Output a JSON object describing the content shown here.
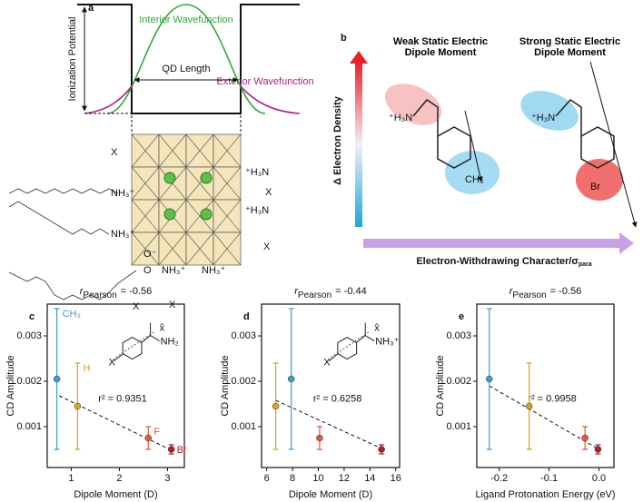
{
  "panel_a": {
    "label": "a",
    "potential_label": "Ionization Potential",
    "interior_label": "Interior Wavefunction",
    "exterior_label": "Exterior Wavefunction",
    "length_label": "QD Length",
    "ligand_labels": [
      "X",
      "NH₃⁺",
      "NH₃⁺",
      "⁺H₃N",
      "⁺H₃N",
      "X",
      "X",
      "NH₃⁺",
      "NH₃⁺",
      "X",
      "X",
      "O⁻",
      "O"
    ]
  },
  "panel_b": {
    "label": "b",
    "weak_title": "Weak Static Electric Dipole Moment",
    "strong_title": "Strong Static Electric Dipole Moment",
    "y_label": "Δ Electron Density",
    "x_label": "Electron-Withdrawing Character/σ",
    "x_label_subscript": "para",
    "amine_weak": "⁺H₃N",
    "substituent_weak": "CH₃",
    "amine_strong": "⁺H₃N",
    "substituent_strong": "Br"
  },
  "chart_data": [
    {
      "type": "scatter",
      "panel": "c",
      "title": {
        "symbol": "r",
        "subscript": "Pearson",
        "text": "= -0.56"
      },
      "xlabel": "Dipole Moment (D)",
      "ylabel": "CD Amplitude",
      "x": [
        0.7,
        1.13,
        2.6,
        3.08
      ],
      "values": [
        0.00205,
        0.00145,
        0.00075,
        0.0005
      ],
      "errors": [
        0.00155,
        0.00095,
        0.00025,
        0.0001
      ],
      "colors": [
        "#3a9fd6",
        "#d9a21f",
        "#e8553c",
        "#b0202a"
      ],
      "point_labels": [
        "CH₃",
        "H",
        "F",
        "Br"
      ],
      "fit": {
        "x": [
          0.75,
          3.1
        ],
        "values": [
          0.00168,
          0.00047
        ]
      },
      "annotation": "r² = 0.9351",
      "inset": {
        "substituent": "X",
        "group": "NH₂",
        "vector": "x̂"
      },
      "xlim": [
        0.5,
        3.35
      ],
      "xticks": [
        1,
        2,
        3
      ],
      "ylim": [
        0.0001,
        0.0037
      ],
      "yticks": [
        0.001,
        0.002,
        0.003
      ]
    },
    {
      "type": "scatter",
      "panel": "d",
      "title": {
        "symbol": "r",
        "subscript": "Pearson",
        "text": "= -0.44"
      },
      "xlabel": "Dipole Moment (D)",
      "ylabel": "CD Amplitude",
      "x": [
        7.9,
        6.7,
        10.1,
        14.9
      ],
      "values": [
        0.00205,
        0.00145,
        0.00075,
        0.0005
      ],
      "errors": [
        0.00155,
        0.00095,
        0.00025,
        0.0001
      ],
      "colors": [
        "#3a9fd6",
        "#d9a21f",
        "#e8553c",
        "#b0202a"
      ],
      "fit": {
        "x": [
          6.7,
          14.9
        ],
        "values": [
          0.00158,
          0.00052
        ]
      },
      "annotation": "r² = 0.6258",
      "inset": {
        "substituent": "X",
        "group": "NH₃⁺",
        "vector": "x̂"
      },
      "xlim": [
        5.6,
        16.3
      ],
      "xticks": [
        6,
        8,
        10,
        12,
        14,
        16
      ],
      "ylim": [
        0.0001,
        0.0037
      ],
      "yticks": [
        0.001,
        0.002,
        0.003
      ]
    },
    {
      "type": "scatter",
      "panel": "e",
      "title": {
        "symbol": "r",
        "subscript": "Pearson",
        "text": "= -0.56"
      },
      "xlabel": "Ligand Protonation Energy (eV)",
      "ylabel": "CD Amplitude",
      "x": [
        -0.22,
        -0.14,
        -0.028,
        -0.002
      ],
      "values": [
        0.00205,
        0.00145,
        0.00075,
        0.0005
      ],
      "errors": [
        0.00155,
        0.00095,
        0.00025,
        0.0001
      ],
      "colors": [
        "#3a9fd6",
        "#d9a21f",
        "#e8553c",
        "#b0202a"
      ],
      "fit": {
        "x": [
          -0.22,
          0.0
        ],
        "values": [
          0.0019,
          0.0005
        ]
      },
      "annotation": "r² = 0.9958",
      "xlim": [
        -0.245,
        0.03
      ],
      "xticks": [
        -0.2,
        -0.1,
        {
          "value": 0,
          "label": "0.0"
        }
      ],
      "ylim": [
        0.0001,
        0.0037
      ],
      "yticks": [
        0.001,
        0.002,
        0.003
      ]
    }
  ]
}
